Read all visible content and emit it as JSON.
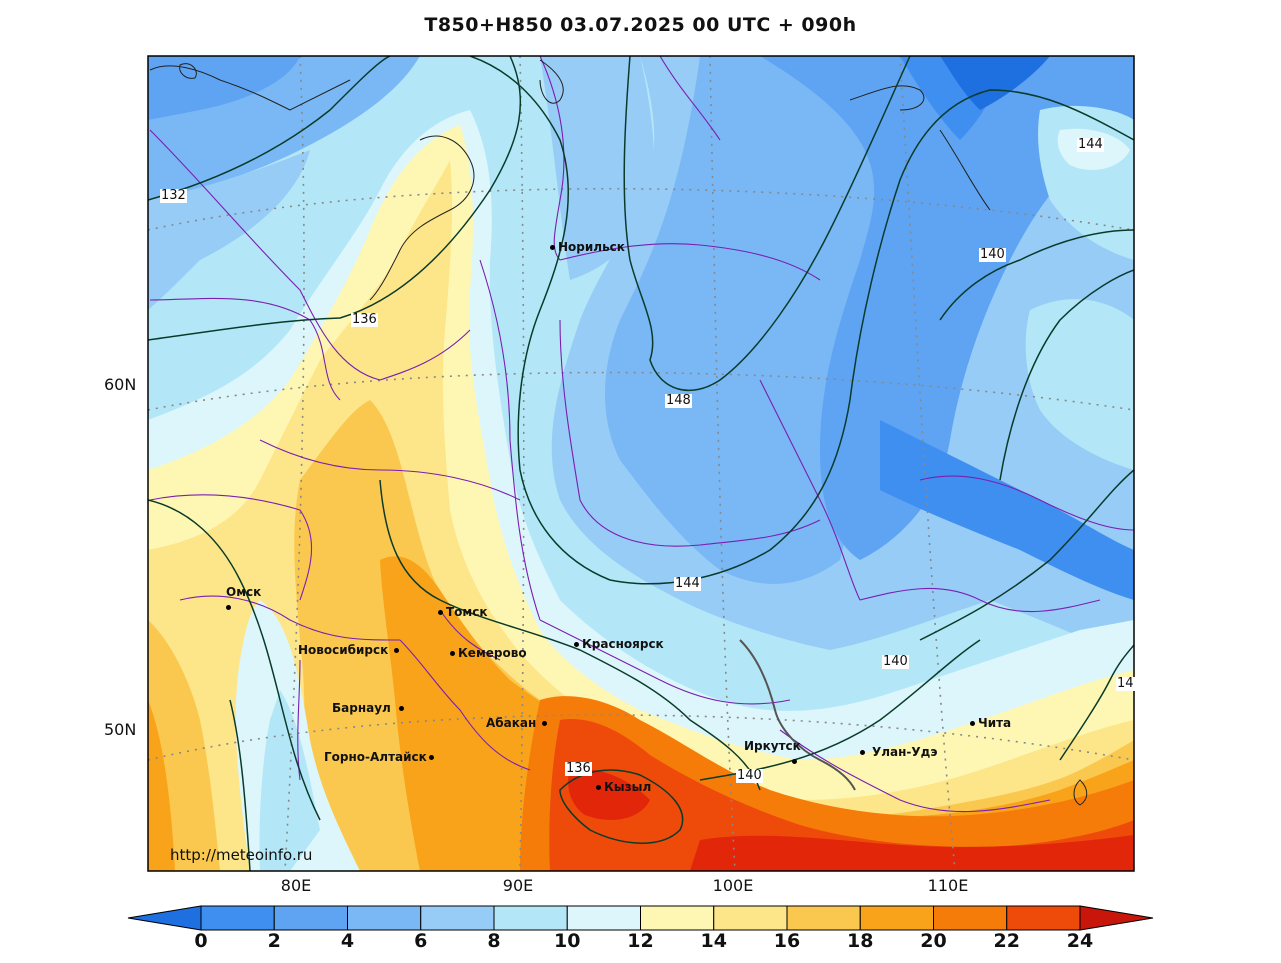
{
  "title": "T850+H850 03.07.2025 00 UTC + 090h",
  "credit": "http://meteoinfo.ru",
  "lat_labels": [
    "60N",
    "50N"
  ],
  "lon_labels": [
    "80E",
    "90E",
    "100E",
    "110E"
  ],
  "colorbar": {
    "ticks": [
      "0",
      "2",
      "4",
      "6",
      "8",
      "10",
      "12",
      "14",
      "16",
      "18",
      "20",
      "22",
      "24"
    ],
    "colors": [
      "#1e6fe0",
      "#3f8ff0",
      "#5ea4f3",
      "#79b8f5",
      "#97ccf7",
      "#b3e7f7",
      "#dcf6fb",
      "#fef7b3",
      "#fde68a",
      "#fbc84f",
      "#f9a31b",
      "#f67c0a",
      "#ee4a0a",
      "#e2260a",
      "#c8160a"
    ]
  },
  "cities": [
    {
      "name": "Норильск"
    },
    {
      "name": "Омск"
    },
    {
      "name": "Томск"
    },
    {
      "name": "Новосибирск"
    },
    {
      "name": "Кемерово"
    },
    {
      "name": "Красноярск"
    },
    {
      "name": "Барнаул"
    },
    {
      "name": "Абакан"
    },
    {
      "name": "Горно-Алтайск"
    },
    {
      "name": "Кызыл"
    },
    {
      "name": "Иркутск"
    },
    {
      "name": "Улан-Удэ"
    },
    {
      "name": "Чита"
    }
  ],
  "isohypse_labels": [
    "132",
    "136",
    "136",
    "140",
    "140",
    "140",
    "144",
    "144",
    "148",
    "14"
  ]
}
